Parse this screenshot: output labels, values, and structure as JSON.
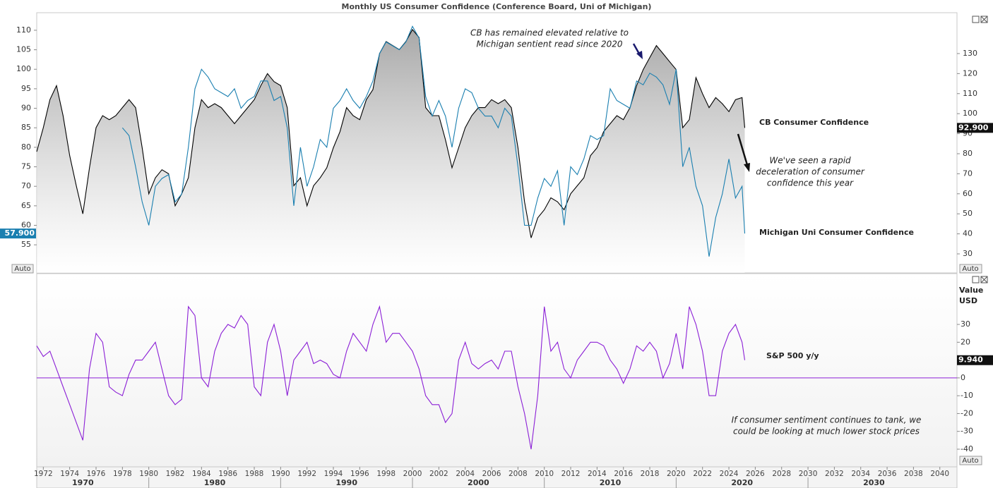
{
  "chart_data": [
    {
      "type": "line",
      "title": "Monthly US Consumer Confidence (Conference Board, Uni of Michigan)",
      "x": [
        1971.5,
        1972,
        1972.5,
        1973,
        1973.5,
        1974,
        1974.5,
        1975,
        1975.5,
        1976,
        1976.5,
        1977,
        1977.5,
        1978,
        1978.5,
        1979,
        1979.5,
        1980,
        1980.5,
        1981,
        1981.5,
        1982,
        1982.5,
        1983,
        1983.5,
        1984,
        1984.5,
        1985,
        1985.5,
        1986,
        1986.5,
        1987,
        1987.5,
        1988,
        1988.5,
        1989,
        1989.5,
        1990,
        1990.5,
        1991,
        1991.5,
        1992,
        1992.5,
        1993,
        1993.5,
        1994,
        1994.5,
        1995,
        1995.5,
        1996,
        1996.5,
        1997,
        1997.5,
        1998,
        1998.5,
        1999,
        1999.5,
        2000,
        2000.5,
        2001,
        2001.5,
        2002,
        2002.5,
        2003,
        2003.5,
        2004,
        2004.5,
        2005,
        2005.5,
        2006,
        2006.5,
        2007,
        2007.5,
        2008,
        2008.5,
        2009,
        2009.5,
        2010,
        2010.5,
        2011,
        2011.5,
        2012,
        2012.5,
        2013,
        2013.5,
        2014,
        2014.5,
        2015,
        2015.5,
        2016,
        2016.5,
        2017,
        2017.5,
        2018,
        2018.5,
        2019,
        2019.5,
        2020,
        2020.5,
        2021,
        2021.5,
        2022,
        2022.5,
        2023,
        2023.5,
        2024,
        2024.5,
        2025,
        2025.2
      ],
      "series": [
        {
          "name": "CB Consumer Confidence",
          "color": "#000000",
          "axis": "y2",
          "area": true,
          "last_label": "92.900",
          "values": [
            81,
            93,
            107,
            114,
            99,
            79,
            64,
            50,
            73,
            93,
            99,
            97,
            99,
            103,
            107,
            103,
            83,
            60,
            68,
            72,
            70,
            54,
            60,
            68,
            93,
            107,
            103,
            105,
            103,
            99,
            95,
            99,
            103,
            107,
            114,
            120,
            116,
            114,
            103,
            64,
            68,
            54,
            64,
            68,
            73,
            83,
            91,
            103,
            99,
            97,
            107,
            112,
            130,
            136,
            134,
            132,
            136,
            142,
            138,
            103,
            99,
            99,
            87,
            73,
            83,
            93,
            99,
            103,
            103,
            107,
            105,
            107,
            103,
            83,
            56,
            38,
            48,
            52,
            58,
            56,
            52,
            60,
            64,
            68,
            79,
            83,
            91,
            95,
            99,
            97,
            103,
            114,
            122,
            128,
            134,
            130,
            126,
            122,
            93,
            97,
            118,
            110,
            103,
            108,
            105,
            101,
            107,
            108,
            92.9
          ]
        },
        {
          "name": "Michigan Uni Consumer Confidence",
          "color": "#1a7fb0",
          "last_label": "57.900",
          "values": [
            null,
            null,
            null,
            null,
            null,
            null,
            null,
            null,
            null,
            null,
            null,
            null,
            null,
            85,
            83,
            75,
            66,
            60,
            70,
            72,
            73,
            66,
            68,
            80,
            95,
            100,
            98,
            95,
            94,
            93,
            95,
            90,
            92,
            93,
            97,
            97,
            92,
            93,
            85,
            65,
            80,
            70,
            75,
            82,
            80,
            90,
            92,
            95,
            92,
            90,
            93,
            97,
            104,
            107,
            106,
            105,
            107,
            111,
            108,
            93,
            88,
            92,
            88,
            80,
            90,
            95,
            94,
            90,
            88,
            88,
            85,
            90,
            88,
            75,
            60,
            60,
            67,
            72,
            70,
            74,
            60,
            75,
            73,
            77,
            83,
            82,
            83,
            95,
            92,
            91,
            90,
            97,
            96,
            99,
            98,
            96,
            91,
            100,
            75,
            80,
            70,
            65,
            52,
            62,
            68,
            77,
            67,
            70,
            57.9
          ]
        }
      ],
      "xlim": [
        1971.5,
        2041.3
      ],
      "ylim": [
        47.8,
        114.5
      ],
      "yticks": [
        55,
        60,
        65,
        70,
        75,
        80,
        85,
        90,
        95,
        100,
        105,
        110
      ],
      "y2lim": [
        20.5,
        150.4
      ],
      "y2ticks": [
        30,
        40,
        50,
        60,
        70,
        80,
        90,
        100,
        110,
        120,
        130
      ],
      "annotations": [
        {
          "lines": [
            "CB has remained elevated relative to",
            "Michigan sentient read since 2020"
          ]
        },
        {
          "lines": [
            "We've seen a rapid",
            "deceleration of consumer",
            "confidence this year"
          ]
        }
      ]
    },
    {
      "type": "line",
      "y_label": [
        "Value",
        "USD"
      ],
      "x": [
        1971.5,
        1972,
        1972.5,
        1973,
        1973.5,
        1974,
        1974.5,
        1975,
        1975.5,
        1976,
        1976.5,
        1977,
        1977.5,
        1978,
        1978.5,
        1979,
        1979.5,
        1980,
        1980.5,
        1981,
        1981.5,
        1982,
        1982.5,
        1983,
        1983.5,
        1984,
        1984.5,
        1985,
        1985.5,
        1986,
        1986.5,
        1987,
        1987.5,
        1988,
        1988.5,
        1989,
        1989.5,
        1990,
        1990.5,
        1991,
        1991.5,
        1992,
        1992.5,
        1993,
        1993.5,
        1994,
        1994.5,
        1995,
        1995.5,
        1996,
        1996.5,
        1997,
        1997.5,
        1998,
        1998.5,
        1999,
        1999.5,
        2000,
        2000.5,
        2001,
        2001.5,
        2002,
        2002.5,
        2003,
        2003.5,
        2004,
        2004.5,
        2005,
        2005.5,
        2006,
        2006.5,
        2007,
        2007.5,
        2008,
        2008.5,
        2009,
        2009.5,
        2010,
        2010.5,
        2011,
        2011.5,
        2012,
        2012.5,
        2013,
        2013.5,
        2014,
        2014.5,
        2015,
        2015.5,
        2016,
        2016.5,
        2017,
        2017.5,
        2018,
        2018.5,
        2019,
        2019.5,
        2020,
        2020.5,
        2021,
        2021.5,
        2022,
        2022.5,
        2023,
        2023.5,
        2024,
        2024.5,
        2025,
        2025.2
      ],
      "series": [
        {
          "name": "S&P 500 y/y",
          "color": "#8b1fd6",
          "last_label": "9.940",
          "values": [
            18,
            12,
            15,
            5,
            -5,
            -15,
            -25,
            -35,
            5,
            25,
            20,
            -5,
            -8,
            -10,
            2,
            10,
            10,
            15,
            20,
            5,
            -10,
            -15,
            -12,
            40,
            35,
            0,
            -5,
            15,
            25,
            30,
            28,
            35,
            30,
            -5,
            -10,
            20,
            30,
            15,
            -10,
            10,
            15,
            20,
            8,
            10,
            8,
            2,
            0,
            15,
            25,
            20,
            15,
            30,
            40,
            20,
            25,
            25,
            20,
            15,
            5,
            -10,
            -15,
            -15,
            -25,
            -20,
            10,
            20,
            8,
            5,
            8,
            10,
            5,
            15,
            15,
            -5,
            -20,
            -40,
            -10,
            40,
            15,
            20,
            5,
            0,
            10,
            15,
            20,
            20,
            18,
            10,
            5,
            -3,
            5,
            18,
            15,
            20,
            15,
            0,
            8,
            25,
            5,
            40,
            30,
            15,
            -10,
            -10,
            15,
            25,
            30,
            20,
            9.94
          ]
        }
      ],
      "xlim": [
        1971.5,
        2041.3
      ],
      "xticks": [
        1972,
        1974,
        1976,
        1978,
        1980,
        1982,
        1984,
        1986,
        1988,
        1990,
        1992,
        1994,
        1996,
        1998,
        2000,
        2002,
        2004,
        2006,
        2008,
        2010,
        2012,
        2014,
        2016,
        2018,
        2020,
        2022,
        2024,
        2026,
        2028,
        2030,
        2032,
        2034,
        2036,
        2038,
        2040
      ],
      "decades": [
        1970,
        1980,
        1990,
        2000,
        2010,
        2020,
        2030
      ],
      "ylim": [
        -49.9,
        58.5
      ],
      "yticks": [
        -40,
        -30,
        -20,
        -10,
        0,
        10,
        20,
        30
      ],
      "ref_line": 0,
      "annotations": [
        {
          "lines": [
            "If consumer sentiment continues to tank, we",
            "could be looking at much lower stock prices"
          ]
        }
      ]
    }
  ],
  "ui": {
    "auto": "Auto"
  }
}
